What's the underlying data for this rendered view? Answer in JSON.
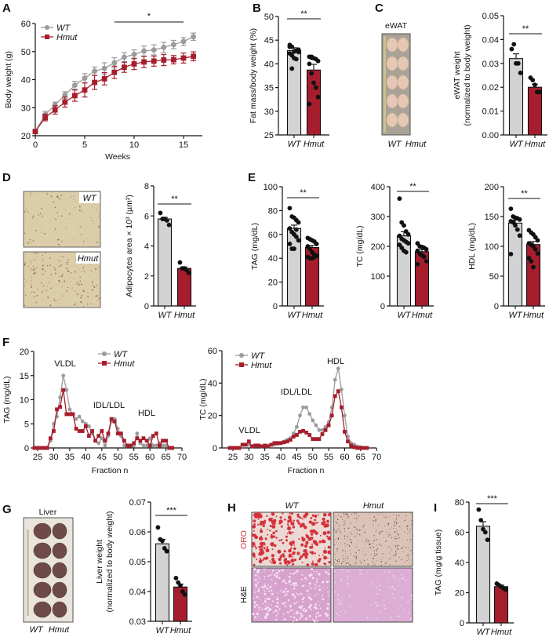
{
  "figure": {
    "panels": [
      "A",
      "B",
      "C",
      "D",
      "E",
      "F",
      "G",
      "H",
      "I"
    ],
    "colors": {
      "WT": "#9b9b9b",
      "WT_bar": "#d3d3d3",
      "Hmut": "#a61e2d",
      "ORO_label": "#d0303a"
    },
    "photos": {
      "C": {
        "title": "eWAT",
        "labels": [
          "WT",
          "Hmut"
        ]
      },
      "D": {
        "labels": [
          "WT",
          "Hmut"
        ]
      },
      "G": {
        "title": "Liver",
        "labels": [
          "WT",
          "Hmut"
        ]
      },
      "H": {
        "columns": [
          "WT",
          "Hmut"
        ],
        "rows": [
          "ORO",
          "H&E"
        ]
      }
    }
  },
  "chart_data": [
    {
      "panel": "A",
      "type": "line",
      "xlabel": "Weeks",
      "ylabel": "Body weight (g)",
      "xlim": [
        0,
        17
      ],
      "ylim": [
        20,
        60
      ],
      "xticks": [
        "0",
        "5",
        "10",
        "15"
      ],
      "yticks": [
        "20",
        "30",
        "40",
        "50",
        "60"
      ],
      "x": [
        0,
        1,
        2,
        3,
        4,
        5,
        6,
        7,
        8,
        9,
        10,
        11,
        12,
        13,
        14,
        15,
        16
      ],
      "series": [
        {
          "name": "WT",
          "color": "#9b9b9b",
          "marker": "circle",
          "values": [
            21.5,
            27.5,
            31,
            34.5,
            38,
            40.5,
            43,
            44,
            46,
            48,
            49,
            50.2,
            50.6,
            51.5,
            52.5,
            53.6,
            55.3
          ],
          "sem": [
            0.5,
            1.2,
            1,
            1.2,
            1.4,
            1.6,
            1.5,
            2,
            1.8,
            1.6,
            1.6,
            1.8,
            1.8,
            1.8,
            1.5,
            1.4,
            1.3
          ]
        },
        {
          "name": "Hmut",
          "color": "#a61e2d",
          "marker": "square",
          "values": [
            21.5,
            26.5,
            29.2,
            32,
            34.3,
            36.3,
            39,
            40.3,
            42.6,
            44.4,
            45.6,
            46.3,
            46.6,
            47,
            47.1,
            47.7,
            48.3
          ],
          "sem": [
            0.5,
            1.2,
            1.5,
            1.8,
            2,
            2.5,
            2.5,
            2.2,
            2.2,
            1.8,
            2,
            2,
            1.8,
            2,
            1.5,
            1.8,
            1.6
          ]
        }
      ],
      "significance": {
        "label": "*",
        "x_range": [
          8,
          15
        ]
      },
      "legend": "top-left"
    },
    {
      "panel": "B",
      "type": "bar",
      "ylabel": "Fat mass/body weight (%)",
      "ylim": [
        25,
        50
      ],
      "yticks": [
        "25",
        "30",
        "35",
        "40",
        "45",
        "50"
      ],
      "categories": [
        "WT",
        "Hmut"
      ],
      "means": [
        42.8,
        38.7
      ],
      "sem": [
        0.6,
        1.2
      ],
      "points": [
        [
          43.6,
          43.6,
          42.6,
          42.8,
          43.0,
          42.2,
          41.8,
          41.2,
          41.0,
          42.5,
          44.0,
          39.0
        ],
        [
          41.5,
          41.5,
          41.2,
          41,
          40.6,
          40,
          38,
          36,
          35,
          33,
          31.5,
          41.3
        ]
      ],
      "significance": "**"
    },
    {
      "panel": "C",
      "type": "bar",
      "ylabel": [
        "eWAT weight",
        "(normalized to body weight)"
      ],
      "ylim": [
        0,
        0.05
      ],
      "yticks": [
        "0.00",
        "0.01",
        "0.02",
        "0.03",
        "0.04",
        "0.05"
      ],
      "categories": [
        "WT",
        "Hmut"
      ],
      "means": [
        0.032,
        0.02
      ],
      "sem": [
        0.002,
        0.0013
      ],
      "points": [
        [
          0.036,
          0.038,
          0.03,
          0.03,
          0.026
        ],
        [
          0.024,
          0.023,
          0.021,
          0.018,
          0.018
        ]
      ],
      "significance": "**"
    },
    {
      "panel": "D",
      "type": "bar",
      "ylabel": "Adipocytes area × 10³ (µm²)",
      "ylim": [
        0,
        8
      ],
      "yticks": [
        "0",
        "2",
        "4",
        "6",
        "8"
      ],
      "categories": [
        "WT",
        "Hmut"
      ],
      "means": [
        5.8,
        2.5
      ],
      "sem": [
        0.1,
        0.1
      ],
      "points": [
        [
          6.2,
          5.8,
          5.8,
          5.7,
          5.4
        ],
        [
          2.9,
          2.5,
          2.5,
          2.4,
          2.2
        ]
      ],
      "significance": "**"
    },
    {
      "panel": "E",
      "type": "bar",
      "ylabel": "TAG (mg/dL)",
      "ylim": [
        0,
        100
      ],
      "yticks": [
        "0",
        "20",
        "40",
        "60",
        "80",
        "100"
      ],
      "categories": [
        "WT",
        "Hmut"
      ],
      "means": [
        65,
        49
      ],
      "sem": [
        2.8,
        1.8
      ],
      "points": [
        [
          82,
          75,
          74,
          72,
          70,
          65,
          62,
          60,
          58,
          55,
          52,
          48,
          48,
          64
        ],
        [
          57,
          56,
          55,
          54,
          52,
          50,
          48,
          45,
          43,
          42,
          41,
          40,
          40,
          41
        ]
      ],
      "significance": "**"
    },
    {
      "panel": "E",
      "type": "bar",
      "ylabel": "TC (mg/dL)",
      "ylim": [
        0,
        400
      ],
      "yticks": [
        "0",
        "100",
        "200",
        "300",
        "400"
      ],
      "categories": [
        "WT",
        "Hmut"
      ],
      "means": [
        235,
        182
      ],
      "sem": [
        14,
        7
      ],
      "points": [
        [
          360,
          280,
          270,
          250,
          240,
          235,
          225,
          220,
          215,
          210,
          205,
          195,
          185,
          180
        ],
        [
          210,
          200,
          198,
          195,
          190,
          185,
          175,
          170,
          165,
          150,
          140
        ]
      ],
      "significance": "**"
    },
    {
      "panel": "E",
      "type": "bar",
      "ylabel": "HDL (mg/dL)",
      "ylim": [
        0,
        200
      ],
      "yticks": [
        "0",
        "50",
        "100",
        "150",
        "200"
      ],
      "categories": [
        "WT",
        "Hmut"
      ],
      "means": [
        139,
        103
      ],
      "sem": [
        5,
        5
      ],
      "points": [
        [
          163,
          150,
          148,
          147,
          145,
          142,
          140,
          135,
          128,
          118,
          87
        ],
        [
          127,
          123,
          120,
          115,
          110,
          105,
          103,
          100,
          95,
          88,
          80,
          75,
          65
        ]
      ],
      "significance": "**"
    },
    {
      "panel": "F",
      "type": "line",
      "xlabel": "Fraction n",
      "ylabel": "TAG (mg/dL)",
      "xlim": [
        23,
        70
      ],
      "ylim": [
        0,
        20
      ],
      "xticks": [
        "25",
        "30",
        "35",
        "40",
        "45",
        "50",
        "55",
        "60",
        "65",
        "70"
      ],
      "yticks": [
        "0",
        "5",
        "10",
        "15",
        "20"
      ],
      "x": [
        24,
        25,
        26,
        27,
        28,
        29,
        30,
        31,
        32,
        33,
        34,
        35,
        36,
        37,
        38,
        39,
        40,
        41,
        42,
        43,
        44,
        45,
        46,
        47,
        48,
        49,
        50,
        51,
        52,
        53,
        54,
        55,
        56,
        57,
        58,
        59,
        60,
        61,
        62,
        63,
        64,
        65,
        66,
        67
      ],
      "series": [
        {
          "name": "WT",
          "color": "#9b9b9b",
          "marker": "circle",
          "values": [
            0,
            0,
            0,
            0,
            0,
            1.5,
            5,
            6.5,
            10.5,
            15,
            12,
            8,
            7,
            6,
            6.5,
            5.5,
            5,
            4.5,
            3,
            1.5,
            1,
            2,
            0.5,
            2.5,
            5.5,
            6,
            4,
            2.5,
            0.5,
            0.5,
            0.5,
            0.5,
            3,
            1,
            0.5,
            0.5,
            2,
            0.5,
            0.5,
            1,
            0.5,
            0.5,
            0,
            0
          ]
        },
        {
          "name": "Hmut",
          "color": "#a61e2d",
          "marker": "square",
          "values": [
            0,
            0,
            0,
            0,
            0,
            2,
            3.5,
            8,
            8.5,
            12,
            7,
            7,
            7,
            4,
            3.5,
            3.5,
            4.5,
            2.5,
            3.5,
            1.5,
            2.5,
            3.5,
            1.5,
            3,
            6,
            5.5,
            3,
            3,
            1.5,
            0.5,
            0.5,
            1,
            2,
            1.5,
            2,
            1.5,
            0.5,
            2.5,
            3,
            0.5,
            1.5,
            1.5,
            0,
            0
          ]
        }
      ],
      "annotations": [
        "VLDL",
        "IDL/LDL",
        "HDL"
      ],
      "legend": "top"
    },
    {
      "panel": "F",
      "type": "line",
      "xlabel": "Fraction n",
      "ylabel": "TC (mg/dL)",
      "xlim": [
        23,
        70
      ],
      "ylim": [
        0,
        60
      ],
      "xticks": [
        "25",
        "30",
        "35",
        "40",
        "45",
        "50",
        "55",
        "60",
        "65",
        "70"
      ],
      "yticks": [
        "0",
        "20",
        "40",
        "60"
      ],
      "x": [
        24,
        25,
        26,
        27,
        28,
        29,
        30,
        31,
        32,
        33,
        34,
        35,
        36,
        37,
        38,
        39,
        40,
        41,
        42,
        43,
        44,
        45,
        46,
        47,
        48,
        49,
        50,
        51,
        52,
        53,
        54,
        55,
        56,
        57,
        58,
        59,
        60,
        61,
        62,
        63,
        64,
        65,
        66,
        67
      ],
      "series": [
        {
          "name": "WT",
          "color": "#9b9b9b",
          "marker": "circle",
          "values": [
            0,
            0,
            0,
            0,
            2,
            2,
            2,
            1,
            1.5,
            1.5,
            1,
            1.5,
            1.5,
            2,
            2,
            2.5,
            3,
            4,
            5,
            6,
            9,
            13,
            20,
            25,
            25,
            21,
            17,
            14,
            11,
            11,
            13,
            16,
            25,
            42,
            49,
            36,
            20,
            7,
            3,
            2,
            1,
            0.5,
            0,
            0
          ]
        },
        {
          "name": "Hmut",
          "color": "#a61e2d",
          "marker": "square",
          "values": [
            0,
            0,
            0,
            0,
            2,
            2,
            4,
            1,
            1.5,
            1.5,
            1,
            1.5,
            1,
            2,
            3,
            3,
            3,
            3.5,
            4,
            5,
            7,
            8,
            10,
            10.5,
            9.5,
            8,
            5.5,
            5.5,
            5.5,
            8.5,
            11,
            14,
            20,
            32,
            35,
            25,
            10,
            4,
            1.5,
            0.5,
            0,
            0,
            0,
            0
          ]
        }
      ],
      "annotations": [
        "VLDL",
        "IDL/LDL",
        "HDL"
      ],
      "legend": "top-left"
    },
    {
      "panel": "G",
      "type": "bar",
      "ylabel": [
        "Liver weight",
        "(normalized to body weight)"
      ],
      "ylim": [
        0.03,
        0.07
      ],
      "yticks": [
        "0.03",
        "0.04",
        "0.05",
        "0.06",
        "0.07"
      ],
      "categories": [
        "WT",
        "Hmut"
      ],
      "means": [
        0.056,
        0.0415
      ],
      "sem": [
        0.0015,
        0.001
      ],
      "points": [
        [
          0.0615,
          0.0575,
          0.057,
          0.0545,
          0.0535
        ],
        [
          0.0445,
          0.043,
          0.042,
          0.04,
          0.039
        ]
      ],
      "significance": "***"
    },
    {
      "panel": "I",
      "type": "bar",
      "ylabel": "TAG (mg/g tissue)",
      "ylim": [
        0,
        80
      ],
      "yticks": [
        "0",
        "20",
        "40",
        "60",
        "80"
      ],
      "categories": [
        "WT",
        "Hmut"
      ],
      "means": [
        64,
        24
      ],
      "sem": [
        3,
        1
      ],
      "points": [
        [
          75,
          68,
          62,
          60,
          55
        ],
        [
          26,
          25,
          24,
          23,
          22
        ]
      ],
      "significance": "***"
    }
  ]
}
